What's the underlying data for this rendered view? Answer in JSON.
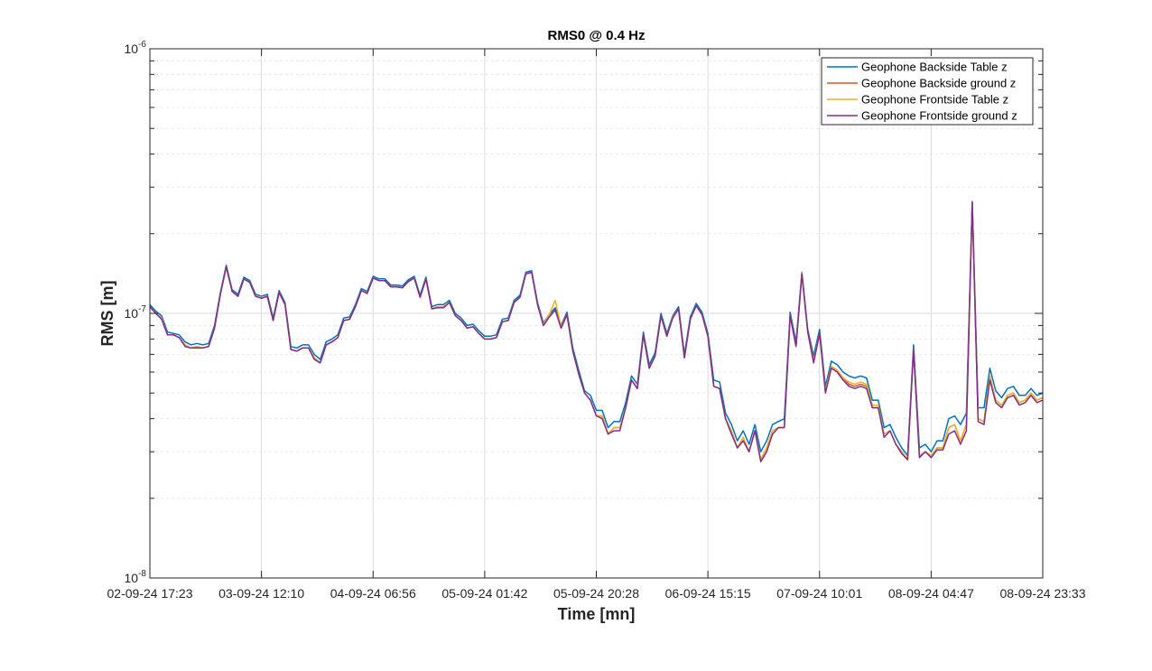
{
  "chart_data": {
    "type": "line",
    "title": "RMS0 @ 0.4 Hz",
    "xlabel": "Time [mn]",
    "ylabel": "RMS [m]",
    "yscale": "log",
    "ylim": [
      1e-08,
      1e-06
    ],
    "yticks": [
      {
        "value": 1e-08,
        "base": "10",
        "exp": "-8"
      },
      {
        "value": 1e-07,
        "base": "10",
        "exp": "-7"
      },
      {
        "value": 1e-06,
        "base": "10",
        "exp": "-6"
      }
    ],
    "xlim": [
      0,
      160
    ],
    "xticks": [
      {
        "value": 0,
        "label": "02-09-24 17:23"
      },
      {
        "value": 20,
        "label": "03-09-24 12:10"
      },
      {
        "value": 40,
        "label": "04-09-24 06:56"
      },
      {
        "value": 60,
        "label": "05-09-24 01:42"
      },
      {
        "value": 80,
        "label": "05-09-24 20:28"
      },
      {
        "value": 100,
        "label": "06-09-24 15:15"
      },
      {
        "value": 120,
        "label": "07-09-24 10:01"
      },
      {
        "value": 140,
        "label": "08-09-24 04:47"
      },
      {
        "value": 160,
        "label": "08-09-24 23:33"
      }
    ],
    "grid": true,
    "legend_position": "top-right",
    "series": [
      {
        "name": "Geophone Backside Table z",
        "color": "#0072BD",
        "values": [
          1.08e-07,
          1.02e-07,
          9.8e-08,
          8.5e-08,
          8.4e-08,
          8.3e-08,
          7.8e-08,
          7.6e-08,
          7.7e-08,
          7.6e-08,
          7.7e-08,
          9e-08,
          1.2e-07,
          1.52e-07,
          1.23e-07,
          1.18e-07,
          1.37e-07,
          1.33e-07,
          1.18e-07,
          1.16e-07,
          1.18e-07,
          9.6e-08,
          1.22e-07,
          1.1e-07,
          7.5e-08,
          7.4e-08,
          7.6e-08,
          7.6e-08,
          7e-08,
          6.7e-08,
          7.8e-08,
          8e-08,
          8.3e-08,
          9.6e-08,
          9.7e-08,
          1.08e-07,
          1.24e-07,
          1.21e-07,
          1.38e-07,
          1.35e-07,
          1.35e-07,
          1.28e-07,
          1.28e-07,
          1.27e-07,
          1.34e-07,
          1.38e-07,
          1.17e-07,
          1.37e-07,
          1.06e-07,
          1.08e-07,
          1.08e-07,
          1.12e-07,
          1e-07,
          9.6e-08,
          9e-08,
          9.1e-08,
          8.6e-08,
          8.2e-08,
          8.2e-08,
          8.3e-08,
          9.5e-08,
          9.6e-08,
          1.12e-07,
          1.17e-07,
          1.43e-07,
          1.45e-07,
          1.1e-07,
          9.2e-08,
          9.9e-08,
          1.05e-07,
          9e-08,
          1.01e-07,
          7.4e-08,
          6.1e-08,
          5.1e-08,
          4.9e-08,
          4.3e-08,
          4.3e-08,
          3.7e-08,
          3.9e-08,
          3.9e-08,
          4.6e-08,
          5.8e-08,
          5.4e-08,
          8.5e-08,
          6.4e-08,
          7.1e-08,
          1e-07,
          8.4e-08,
          9.8e-08,
          1.06e-07,
          7e-08,
          9.7e-08,
          1.09e-07,
          1.01e-07,
          8.4e-08,
          5.6e-08,
          5.5e-08,
          4.2e-08,
          3.8e-08,
          3.3e-08,
          3.6e-08,
          3.2e-08,
          3.8e-08,
          3e-08,
          3.3e-08,
          3.8e-08,
          3.9e-08,
          4e-08,
          1.01e-07,
          7.8e-08,
          1.43e-07,
          8.7e-08,
          6.9e-08,
          8.7e-08,
          5.3e-08,
          6.6e-08,
          6.4e-08,
          6e-08,
          5.8e-08,
          5.7e-08,
          5.8e-08,
          5.7e-08,
          4.7e-08,
          4.7e-08,
          3.7e-08,
          3.8e-08,
          3.4e-08,
          3.1e-08,
          2.9e-08,
          7.6e-08,
          3.1e-08,
          3.2e-08,
          3e-08,
          3.3e-08,
          3.3e-08,
          4e-08,
          4.1e-08,
          3.8e-08,
          4.2e-08,
          2.65e-07,
          4.4e-08,
          4.4e-08,
          6.2e-08,
          5.1e-08,
          4.8e-08,
          5.2e-08,
          5.3e-08,
          4.9e-08,
          4.9e-08,
          5.2e-08,
          4.9e-08,
          5e-08
        ]
      },
      {
        "name": "Geophone Backside ground z",
        "color": "#D95319",
        "values": [
          1.06e-07,
          1e-07,
          9.6e-08,
          8.3e-08,
          8.3e-08,
          8.1e-08,
          7.6e-08,
          7.4e-08,
          7.5e-08,
          7.4e-08,
          7.5e-08,
          8.8e-08,
          1.18e-07,
          1.5e-07,
          1.21e-07,
          1.16e-07,
          1.35e-07,
          1.31e-07,
          1.16e-07,
          1.14e-07,
          1.16e-07,
          9.4e-08,
          1.2e-07,
          1.08e-07,
          7.3e-08,
          7.2e-08,
          7.4e-08,
          7.4e-08,
          6.8e-08,
          6.5e-08,
          7.6e-08,
          7.8e-08,
          8.1e-08,
          9.4e-08,
          9.5e-08,
          1.06e-07,
          1.22e-07,
          1.19e-07,
          1.36e-07,
          1.33e-07,
          1.33e-07,
          1.26e-07,
          1.26e-07,
          1.25e-07,
          1.32e-07,
          1.36e-07,
          1.15e-07,
          1.35e-07,
          1.04e-07,
          1.06e-07,
          1.06e-07,
          1.1e-07,
          9.8e-08,
          9.4e-08,
          8.8e-08,
          8.9e-08,
          8.4e-08,
          8e-08,
          8e-08,
          8.1e-08,
          9.3e-08,
          9.4e-08,
          1.1e-07,
          1.15e-07,
          1.41e-07,
          1.43e-07,
          1.08e-07,
          9e-08,
          9.7e-08,
          1.03e-07,
          8.8e-08,
          9.9e-08,
          7.2e-08,
          5.9e-08,
          5e-08,
          4.7e-08,
          4.1e-08,
          4.1e-08,
          3.5e-08,
          3.7e-08,
          3.7e-08,
          4.4e-08,
          5.6e-08,
          5.2e-08,
          8.3e-08,
          6.2e-08,
          6.9e-08,
          9.8e-08,
          8.2e-08,
          9.6e-08,
          1.04e-07,
          6.8e-08,
          9.5e-08,
          1.07e-07,
          9.9e-08,
          8.2e-08,
          5.3e-08,
          5.2e-08,
          4e-08,
          3.6e-08,
          3.1e-08,
          3.4e-08,
          3e-08,
          3.6e-08,
          2.8e-08,
          3.1e-08,
          3.6e-08,
          3.7e-08,
          3.7e-08,
          9.8e-08,
          7.5e-08,
          1.41e-07,
          8.5e-08,
          6.6e-08,
          8.4e-08,
          5.1e-08,
          6.3e-08,
          6.1e-08,
          5.7e-08,
          5.4e-08,
          5.3e-08,
          5.4e-08,
          5.3e-08,
          4.4e-08,
          4.4e-08,
          3.5e-08,
          3.6e-08,
          3.2e-08,
          3e-08,
          2.8e-08,
          7.3e-08,
          2.9e-08,
          3e-08,
          2.9e-08,
          3.1e-08,
          3.1e-08,
          3.7e-08,
          3.8e-08,
          3.3e-08,
          3.8e-08,
          2.62e-07,
          4e-08,
          3.9e-08,
          5.8e-08,
          4.7e-08,
          4.5e-08,
          4.9e-08,
          5e-08,
          4.6e-08,
          4.7e-08,
          5e-08,
          4.7e-08,
          4.8e-08
        ]
      },
      {
        "name": "Geophone Frontside Table z",
        "color": "#EDB120",
        "values": [
          1.06e-07,
          1e-07,
          9.6e-08,
          8.3e-08,
          8.3e-08,
          8.1e-08,
          7.6e-08,
          7.4e-08,
          7.5e-08,
          7.4e-08,
          7.5e-08,
          8.8e-08,
          1.18e-07,
          1.5e-07,
          1.21e-07,
          1.16e-07,
          1.35e-07,
          1.31e-07,
          1.16e-07,
          1.14e-07,
          1.16e-07,
          9.4e-08,
          1.2e-07,
          1.08e-07,
          7.3e-08,
          7.2e-08,
          7.4e-08,
          7.4e-08,
          6.8e-08,
          6.5e-08,
          7.6e-08,
          7.8e-08,
          8.1e-08,
          9.4e-08,
          9.5e-08,
          1.06e-07,
          1.22e-07,
          1.19e-07,
          1.36e-07,
          1.33e-07,
          1.33e-07,
          1.26e-07,
          1.26e-07,
          1.25e-07,
          1.32e-07,
          1.36e-07,
          1.15e-07,
          1.35e-07,
          1.04e-07,
          1.06e-07,
          1.06e-07,
          1.1e-07,
          9.8e-08,
          9.4e-08,
          8.8e-08,
          8.9e-08,
          8.4e-08,
          8e-08,
          8e-08,
          8.1e-08,
          9.3e-08,
          9.4e-08,
          1.1e-07,
          1.15e-07,
          1.41e-07,
          1.43e-07,
          1.08e-07,
          9.1e-08,
          9.9e-08,
          1.12e-07,
          8.9e-08,
          9.9e-08,
          7.2e-08,
          5.9e-08,
          5e-08,
          4.7e-08,
          4.1e-08,
          4.1e-08,
          3.5e-08,
          3.7e-08,
          3.7e-08,
          4.4e-08,
          5.6e-08,
          5.2e-08,
          8.3e-08,
          6.2e-08,
          6.9e-08,
          9.8e-08,
          8.2e-08,
          9.7e-08,
          1.04e-07,
          6.8e-08,
          9.5e-08,
          1.07e-07,
          9.9e-08,
          8.2e-08,
          5.3e-08,
          5.2e-08,
          4e-08,
          3.6e-08,
          3.1e-08,
          3.4e-08,
          3e-08,
          3.6e-08,
          2.8e-08,
          3.1e-08,
          3.6e-08,
          3.7e-08,
          3.7e-08,
          9.8e-08,
          7.5e-08,
          1.42e-07,
          8.5e-08,
          6.6e-08,
          8.4e-08,
          5.1e-08,
          6.3e-08,
          6.1e-08,
          5.7e-08,
          5.5e-08,
          5.4e-08,
          5.5e-08,
          5.4e-08,
          4.5e-08,
          4.5e-08,
          3.5e-08,
          3.6e-08,
          3.2e-08,
          3e-08,
          2.8e-08,
          7.3e-08,
          2.9e-08,
          3e-08,
          2.9e-08,
          3.1e-08,
          3.1e-08,
          3.7e-08,
          3.8e-08,
          3.3e-08,
          3.8e-08,
          2.62e-07,
          4e-08,
          3.9e-08,
          5.8e-08,
          4.7e-08,
          4.5e-08,
          4.9e-08,
          5e-08,
          4.6e-08,
          4.7e-08,
          5e-08,
          4.7e-08,
          4.8e-08
        ]
      },
      {
        "name": "Geophone Frontside ground z",
        "color": "#7E2F8E",
        "values": [
          1.06e-07,
          1e-07,
          9.5e-08,
          8.3e-08,
          8.3e-08,
          8.1e-08,
          7.5e-08,
          7.4e-08,
          7.4e-08,
          7.4e-08,
          7.5e-08,
          8.8e-08,
          1.18e-07,
          1.5e-07,
          1.21e-07,
          1.16e-07,
          1.35e-07,
          1.31e-07,
          1.16e-07,
          1.14e-07,
          1.16e-07,
          9.4e-08,
          1.2e-07,
          1.08e-07,
          7.3e-08,
          7.2e-08,
          7.4e-08,
          7.4e-08,
          6.7e-08,
          6.5e-08,
          7.6e-08,
          7.8e-08,
          8.1e-08,
          9.4e-08,
          9.5e-08,
          1.06e-07,
          1.22e-07,
          1.19e-07,
          1.36e-07,
          1.33e-07,
          1.33e-07,
          1.26e-07,
          1.26e-07,
          1.25e-07,
          1.32e-07,
          1.36e-07,
          1.15e-07,
          1.35e-07,
          1.04e-07,
          1.05e-07,
          1.05e-07,
          1.1e-07,
          9.8e-08,
          9.4e-08,
          8.8e-08,
          8.9e-08,
          8.4e-08,
          8e-08,
          8e-08,
          8.1e-08,
          9.3e-08,
          9.4e-08,
          1.1e-07,
          1.15e-07,
          1.41e-07,
          1.43e-07,
          1.08e-07,
          9e-08,
          9.7e-08,
          1.03e-07,
          8.8e-08,
          9.9e-08,
          7.2e-08,
          5.9e-08,
          5e-08,
          4.7e-08,
          4.1e-08,
          4e-08,
          3.5e-08,
          3.6e-08,
          3.6e-08,
          4.4e-08,
          5.6e-08,
          5.2e-08,
          8.3e-08,
          6.2e-08,
          6.9e-08,
          9.8e-08,
          8.2e-08,
          9.6e-08,
          1.04e-07,
          6.8e-08,
          9.5e-08,
          1.07e-07,
          9.9e-08,
          8.2e-08,
          5.3e-08,
          5.2e-08,
          4e-08,
          3.5e-08,
          3.1e-08,
          3.3e-08,
          3e-08,
          3.6e-08,
          2.75e-08,
          3e-08,
          3.5e-08,
          3.7e-08,
          3.7e-08,
          9.8e-08,
          7.5e-08,
          1.41e-07,
          8.5e-08,
          6.5e-08,
          8.4e-08,
          5e-08,
          6.2e-08,
          6e-08,
          5.6e-08,
          5.3e-08,
          5.2e-08,
          5.3e-08,
          5.2e-08,
          4.4e-08,
          4.4e-08,
          3.4e-08,
          3.6e-08,
          3.2e-08,
          2.95e-08,
          2.8e-08,
          7.3e-08,
          2.85e-08,
          3e-08,
          2.85e-08,
          3.05e-08,
          3.05e-08,
          3.5e-08,
          3.6e-08,
          3.2e-08,
          3.6e-08,
          2.62e-07,
          3.9e-08,
          3.8e-08,
          5.6e-08,
          4.6e-08,
          4.4e-08,
          4.8e-08,
          4.9e-08,
          4.5e-08,
          4.6e-08,
          4.9e-08,
          4.6e-08,
          4.7e-08
        ]
      }
    ]
  }
}
